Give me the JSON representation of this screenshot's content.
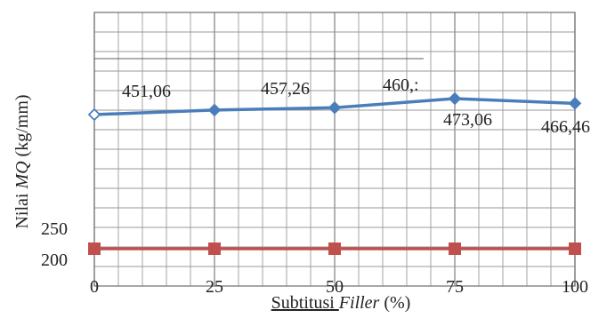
{
  "chart_data": {
    "type": "line",
    "x": [
      0,
      25,
      50,
      75,
      100
    ],
    "x_ticks": [
      "0",
      "25",
      "50",
      "75",
      "100"
    ],
    "y_ticks": [
      "200",
      "250"
    ],
    "xlabel": {
      "main": "Subtitusi ",
      "italic": "Filler",
      "tail": " (%)"
    },
    "ylabel": {
      "main": "Nilai ",
      "italic": "MQ",
      "tail": " (kg/mm)"
    },
    "grid": true,
    "series": [
      {
        "color": "#4a7ebb",
        "marker": "diamond",
        "values": [
          451.06,
          457.26,
          460.5,
          473.06,
          466.46
        ],
        "labels": [
          "451,06",
          "457,26",
          "460,:",
          "473,06",
          "466,46"
        ]
      },
      {
        "color": "#c0504d",
        "marker": "square",
        "values": [
          200,
          200,
          200,
          200,
          200
        ],
        "labels": []
      }
    ]
  }
}
